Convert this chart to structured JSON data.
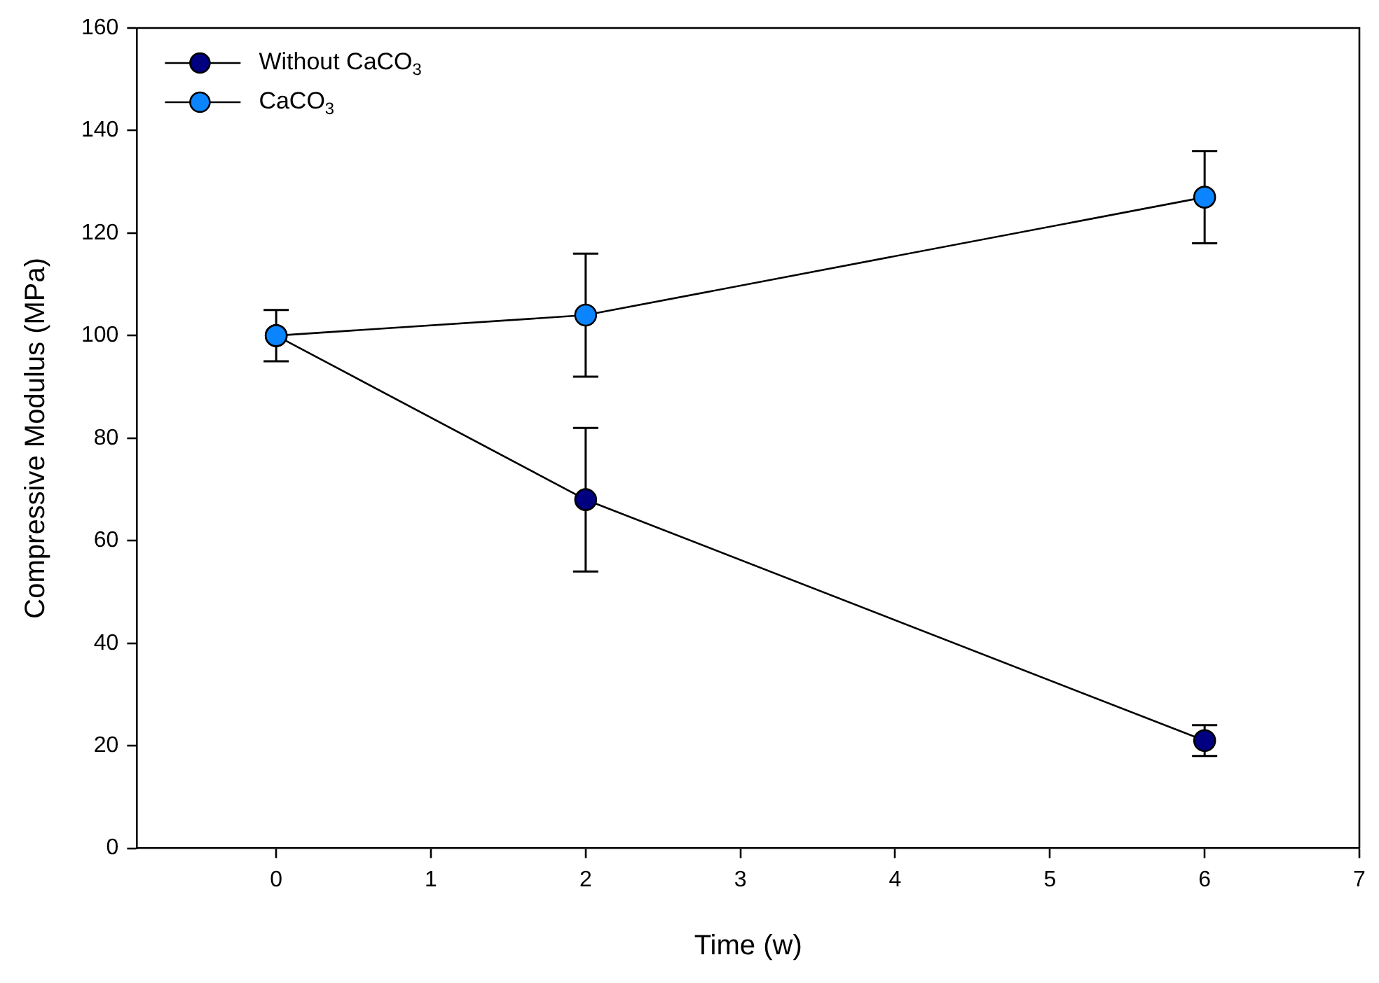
{
  "chart_data": {
    "type": "line",
    "xlabel": "Time (w)",
    "ylabel": "Compressive Modulus (MPa)",
    "x": [
      0,
      2,
      6
    ],
    "series": [
      {
        "name": "Without CaCO$_{3}$",
        "color": "#000080",
        "values": [
          100,
          68,
          21
        ],
        "errors": [
          5,
          14,
          3
        ]
      },
      {
        "name": "CaCO$_{3}$",
        "color": "#0a84ff",
        "values": [
          100,
          104,
          127
        ],
        "errors": [
          5,
          12,
          9
        ]
      }
    ],
    "xlim": [
      -0.9,
      7
    ],
    "xticks": [
      0,
      1,
      2,
      3,
      4,
      5,
      6,
      7
    ],
    "ylim": [
      0,
      160
    ],
    "yticks": [
      0,
      20,
      40,
      60,
      80,
      100,
      120,
      140,
      160
    ],
    "grid": false,
    "legend": "top left",
    "marker": "circle",
    "line_style": "solid"
  }
}
